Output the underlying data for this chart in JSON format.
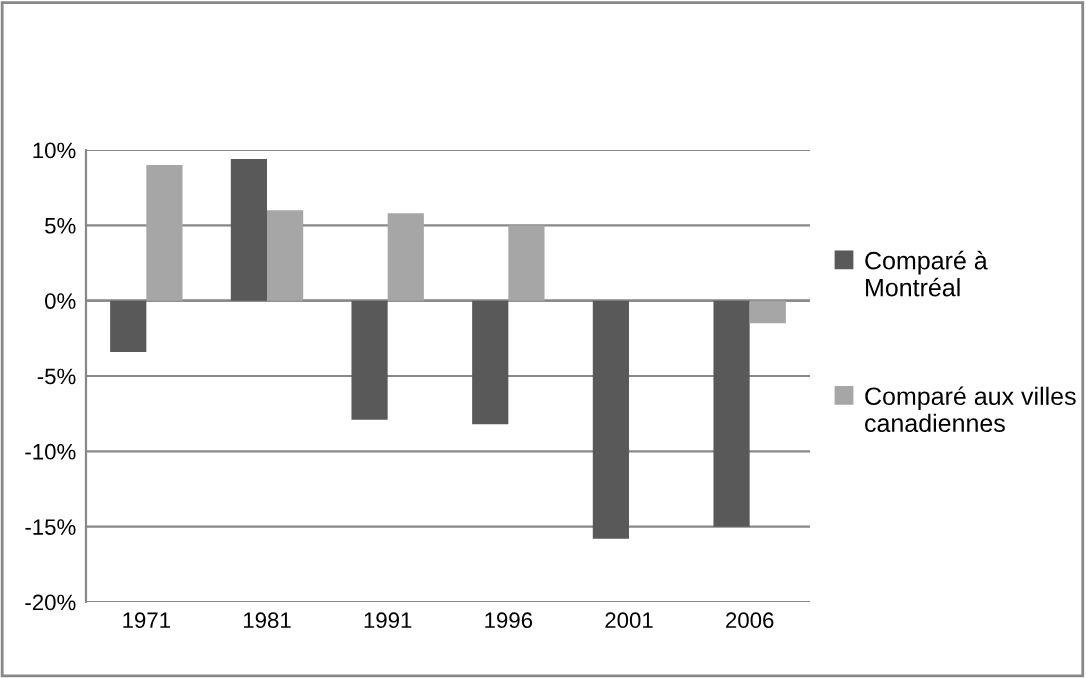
{
  "chart_data": {
    "type": "bar",
    "categories": [
      "1971",
      "1981",
      "1991",
      "1996",
      "2001",
      "2006"
    ],
    "series": [
      {
        "name": "Comparé à Montréal",
        "color": "#595959",
        "values": [
          -3.4,
          9.4,
          -7.9,
          -8.2,
          -15.8,
          -15.0
        ]
      },
      {
        "name": "Comparé aux villes canadiennes",
        "color": "#a6a6a6",
        "values": [
          9.0,
          6.0,
          5.8,
          5.0,
          null,
          -1.5
        ]
      }
    ],
    "ylim": [
      -20,
      10
    ],
    "yticks": [
      {
        "value": -20,
        "label": "-20%"
      },
      {
        "value": -15,
        "label": "-15%"
      },
      {
        "value": -10,
        "label": "-10%"
      },
      {
        "value": -5,
        "label": "-5%"
      },
      {
        "value": 0,
        "label": "0%"
      },
      {
        "value": 5,
        "label": "5%"
      },
      {
        "value": 10,
        "label": "10%"
      }
    ],
    "grid": "y",
    "legend": "right"
  }
}
